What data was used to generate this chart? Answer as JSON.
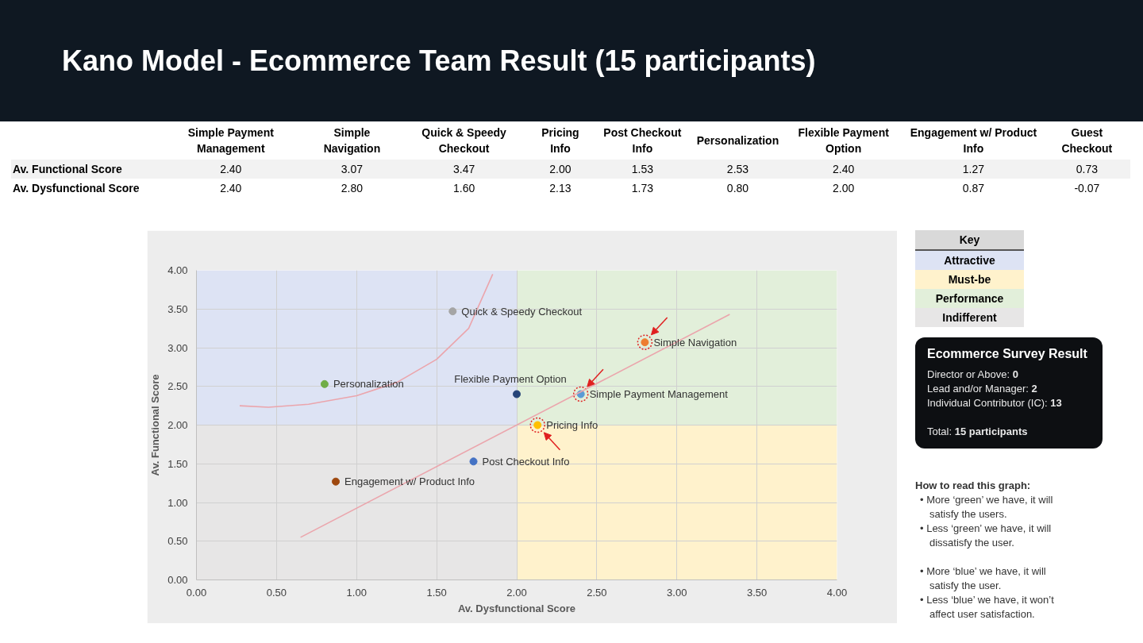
{
  "chart_data": [
    {
      "type": "other",
      "title": "Kano Model - Ecommerce Team Result (15 participants)",
      "categories": [
        "Simple Payment Management",
        "Simple Navigation",
        "Quick & Speedy Checkout",
        "Pricing Info",
        "Post Checkout Info",
        "Personalization",
        "Flexible Payment Option",
        "Engagement w/ Product Info",
        "Guest Checkout"
      ],
      "series": [
        {
          "name": "Av. Functional Score",
          "values": [
            2.4,
            3.07,
            3.47,
            2.0,
            1.53,
            2.53,
            2.4,
            1.27,
            0.73
          ],
          "value_labels": [
            "2.40",
            "3.07",
            "3.47",
            "2.00",
            "1.53",
            "2.53",
            "2.40",
            "1.27",
            "0.73"
          ]
        },
        {
          "name": "Av. Dysfunctional Score",
          "values": [
            2.4,
            2.8,
            1.6,
            2.13,
            1.73,
            0.8,
            2.0,
            0.87,
            -0.07
          ],
          "value_labels": [
            "2.40",
            "2.80",
            "1.60",
            "2.13",
            "1.73",
            "0.80",
            "2.00",
            "0.87",
            "-0.07"
          ]
        }
      ]
    },
    {
      "type": "scatter",
      "xlabel": "Av. Dysfunctional Score",
      "ylabel": "Av. Functional Score",
      "xlim": [
        0,
        4
      ],
      "ylim": [
        0,
        4
      ],
      "xticks": [
        {
          "value": 0,
          "label": "0.00"
        },
        {
          "value": 0.5,
          "label": "0.50"
        },
        {
          "value": 1,
          "label": "1.00"
        },
        {
          "value": 1.5,
          "label": "1.50"
        },
        {
          "value": 2,
          "label": "2.00"
        },
        {
          "value": 2.5,
          "label": "2.50"
        },
        {
          "value": 3,
          "label": "3.00"
        },
        {
          "value": 3.5,
          "label": "3.50"
        },
        {
          "value": 4,
          "label": "4.00"
        }
      ],
      "yticks": [
        {
          "value": 0,
          "label": "0.00"
        },
        {
          "value": 0.5,
          "label": "0.50"
        },
        {
          "value": 1,
          "label": "1.00"
        },
        {
          "value": 1.5,
          "label": "1.50"
        },
        {
          "value": 2,
          "label": "2.00"
        },
        {
          "value": 2.5,
          "label": "2.50"
        },
        {
          "value": 3,
          "label": "3.00"
        },
        {
          "value": 3.5,
          "label": "3.50"
        },
        {
          "value": 4,
          "label": "4.00"
        }
      ],
      "grid": true,
      "marker": "circle",
      "legend_title": "Key",
      "legend": "right",
      "stacked": true,
      "x": [
        1,
        3
      ],
      "series": [
        {
          "type": "bar",
          "name": "Indifferent",
          "color": "#e7e6e6",
          "values": [
            2,
            null
          ]
        },
        {
          "type": "bar",
          "name": "Attractive",
          "color": "#dde3f4",
          "values": [
            2,
            null
          ]
        },
        {
          "type": "bar",
          "name": "Must-be",
          "color": "#fff2cc",
          "values": [
            null,
            2
          ]
        },
        {
          "type": "bar",
          "name": "Performance",
          "color": "#e2efda",
          "values": [
            null,
            2
          ]
        },
        {
          "name": "Simple Payment Management",
          "color": "#5b9bd5",
          "x": [
            2.4
          ],
          "values": [
            2.4
          ]
        },
        {
          "name": "Simple Navigation",
          "color": "#ed7d31",
          "x": [
            2.8
          ],
          "values": [
            3.07
          ]
        },
        {
          "name": "Quick & Speedy Checkout",
          "color": "#a5a5a5",
          "x": [
            1.6
          ],
          "values": [
            3.47
          ]
        },
        {
          "name": "Pricing Info",
          "color": "#ffc000",
          "x": [
            2.13
          ],
          "values": [
            2.0
          ]
        },
        {
          "name": "Post Checkout Info",
          "color": "#4472c4",
          "x": [
            1.73
          ],
          "values": [
            1.53
          ]
        },
        {
          "name": "Personalization",
          "color": "#70ad47",
          "x": [
            0.8
          ],
          "values": [
            2.53
          ]
        },
        {
          "name": "Flexible Payment Option",
          "color": "#264478",
          "x": [
            2.0
          ],
          "values": [
            2.4
          ]
        },
        {
          "name": "Engagement w/ Product Info",
          "color": "#9e480e",
          "x": [
            0.87
          ],
          "values": [
            1.27
          ]
        },
        {
          "color": "#e02020",
          "x": [
            2.4,
            2.8,
            2.13
          ],
          "values": [
            2.4,
            3.07,
            2.0
          ],
          "line_style": "dotted"
        },
        {
          "type": "line",
          "marker": "none",
          "color": "#eba5ac",
          "x": [
            0.65,
            3.33
          ],
          "values": [
            0.55,
            3.43
          ]
        },
        {
          "type": "line",
          "marker": "none",
          "color": "#eba5ac",
          "x": [
            0.27,
            0.45,
            0.7,
            1.0,
            1.25,
            1.5,
            1.7,
            1.85
          ],
          "values": [
            2.25,
            2.23,
            2.27,
            2.38,
            2.55,
            2.85,
            3.25,
            3.95
          ]
        }
      ],
      "annotations": [
        "Ecommerce Survey Result",
        "Director or Above: 0",
        "Lead and/or Manager: 2",
        "Individual Contributor (IC): 13",
        "Total: 15 participants",
        "How to read this graph:",
        "• More ‘green’ we have, it will satisfy the users.",
        "• Less ‘green’ we have, it will dissatisfy the user.",
        "• More ‘blue’ we have, it will satisfy the user.",
        "• Less ‘blue’ we have, it won’t affect user satisfaction."
      ]
    }
  ]
}
